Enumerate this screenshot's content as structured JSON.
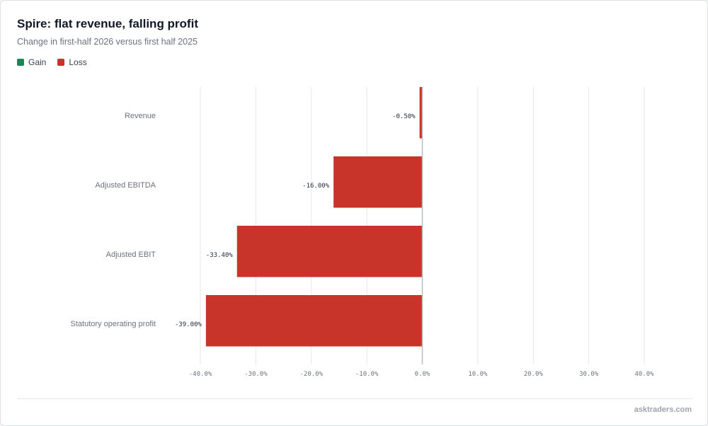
{
  "header": {
    "title": "Spire: flat revenue, falling profit",
    "subtitle": "Change in first-half 2026 versus first half 2025"
  },
  "legend": {
    "items": [
      {
        "label": "Gain",
        "color": "#1a8754"
      },
      {
        "label": "Loss",
        "color": "#c8342a"
      }
    ]
  },
  "chart_data": {
    "type": "bar",
    "orientation": "horizontal",
    "categories": [
      "Revenue",
      "Adjusted EBITDA",
      "Adjusted EBIT",
      "Statutory operating profit"
    ],
    "values": [
      -0.5,
      -16.0,
      -33.4,
      -39.0
    ],
    "value_labels": [
      "-0.50%",
      "-16.00%",
      "-33.40%",
      "-39.00%"
    ],
    "xlim": [
      -40,
      40
    ],
    "xticks": [
      -40,
      -30,
      -20,
      -10,
      0,
      10,
      20,
      30,
      40
    ],
    "xtick_labels": [
      "-40.0%",
      "-30.0%",
      "-20.0%",
      "-10.0%",
      "0.0%",
      "10.0%",
      "20.0%",
      "30.0%",
      "40.0%"
    ],
    "grid": true,
    "legend_position": "top-left",
    "colors": {
      "gain": "#1a8754",
      "loss": "#c8342a"
    }
  },
  "footer": {
    "brand": "asktraders.com"
  }
}
